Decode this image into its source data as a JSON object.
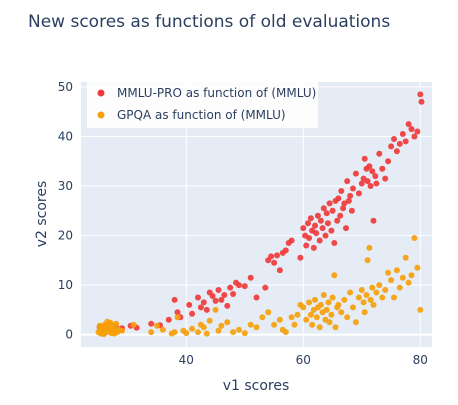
{
  "chart_data": {
    "type": "scatter",
    "title": "New scores as functions of old evaluations",
    "xlabel": "v1 scores",
    "ylabel": "v2 scores",
    "xlim": [
      22,
      82
    ],
    "ylim": [
      -2.5,
      51
    ],
    "x_ticks": [
      40,
      60,
      80
    ],
    "y_ticks": [
      0,
      10,
      20,
      30,
      40,
      50
    ],
    "grid": true,
    "legend_position": "top-left",
    "series": [
      {
        "name": "MMLU-PRO as function of (MMLU)",
        "color": "#ef3a3a",
        "points": [
          [
            25.2,
            1.5
          ],
          [
            25.8,
            1.0
          ],
          [
            26.3,
            1.8
          ],
          [
            26.8,
            2.2
          ],
          [
            27.5,
            1.2
          ],
          [
            28.0,
            1.6
          ],
          [
            29.0,
            1.3
          ],
          [
            30.5,
            1.8
          ],
          [
            31.5,
            1.4
          ],
          [
            34.0,
            2.2
          ],
          [
            35.5,
            1.9
          ],
          [
            37.0,
            3.0
          ],
          [
            38.0,
            7.0
          ],
          [
            38.5,
            4.5
          ],
          [
            39.0,
            3.5
          ],
          [
            40.5,
            6.0
          ],
          [
            41.0,
            4.2
          ],
          [
            42.0,
            7.5
          ],
          [
            42.5,
            5.5
          ],
          [
            43.0,
            6.5
          ],
          [
            43.5,
            5.0
          ],
          [
            44.0,
            8.5
          ],
          [
            44.5,
            7.8
          ],
          [
            45.0,
            6.8
          ],
          [
            45.5,
            9.0
          ],
          [
            46.0,
            7.0
          ],
          [
            46.5,
            8.0
          ],
          [
            47.0,
            5.8
          ],
          [
            47.5,
            9.5
          ],
          [
            48.0,
            8.2
          ],
          [
            48.5,
            10.5
          ],
          [
            49.0,
            10.0
          ],
          [
            50.0,
            9.8
          ],
          [
            51.0,
            11.5
          ],
          [
            52.0,
            7.5
          ],
          [
            53.5,
            9.5
          ],
          [
            54.0,
            15.0
          ],
          [
            54.5,
            15.8
          ],
          [
            55.0,
            14.5
          ],
          [
            55.5,
            16.0
          ],
          [
            56.0,
            13.0
          ],
          [
            56.5,
            16.5
          ],
          [
            57.0,
            17.0
          ],
          [
            57.5,
            18.5
          ],
          [
            58.0,
            19.0
          ],
          [
            59.5,
            15.5
          ],
          [
            60.0,
            21.5
          ],
          [
            60.3,
            20.0
          ],
          [
            60.5,
            18.0
          ],
          [
            60.8,
            22.5
          ],
          [
            61.0,
            19.5
          ],
          [
            61.3,
            23.5
          ],
          [
            61.5,
            21.0
          ],
          [
            61.8,
            17.5
          ],
          [
            62.0,
            22.0
          ],
          [
            62.2,
            20.5
          ],
          [
            62.5,
            24.0
          ],
          [
            62.8,
            19.0
          ],
          [
            63.0,
            23.0
          ],
          [
            63.3,
            21.5
          ],
          [
            63.5,
            25.5
          ],
          [
            63.8,
            20.0
          ],
          [
            64.0,
            24.5
          ],
          [
            64.2,
            22.5
          ],
          [
            64.5,
            26.5
          ],
          [
            64.8,
            21.0
          ],
          [
            65.0,
            25.0
          ],
          [
            65.3,
            18.5
          ],
          [
            65.5,
            27.0
          ],
          [
            65.8,
            23.0
          ],
          [
            66.0,
            27.5
          ],
          [
            66.3,
            24.0
          ],
          [
            66.5,
            29.0
          ],
          [
            66.8,
            25.5
          ],
          [
            67.0,
            26.5
          ],
          [
            67.3,
            21.5
          ],
          [
            67.5,
            31.0
          ],
          [
            67.8,
            27.0
          ],
          [
            68.0,
            28.0
          ],
          [
            68.3,
            25.0
          ],
          [
            68.5,
            29.5
          ],
          [
            69.0,
            32.5
          ],
          [
            69.5,
            28.5
          ],
          [
            70.0,
            30.5
          ],
          [
            70.3,
            31.5
          ],
          [
            70.5,
            35.5
          ],
          [
            70.8,
            33.5
          ],
          [
            71.0,
            31.0
          ],
          [
            71.3,
            34.0
          ],
          [
            71.5,
            30.0
          ],
          [
            71.8,
            33.0
          ],
          [
            72.0,
            23.0
          ],
          [
            72.3,
            32.0
          ],
          [
            72.5,
            30.5
          ],
          [
            73.0,
            36.5
          ],
          [
            73.5,
            33.5
          ],
          [
            74.0,
            31.5
          ],
          [
            74.5,
            35.0
          ],
          [
            75.0,
            38.0
          ],
          [
            75.5,
            39.5
          ],
          [
            76.0,
            37.0
          ],
          [
            76.5,
            38.5
          ],
          [
            77.0,
            40.5
          ],
          [
            77.5,
            39.0
          ],
          [
            78.0,
            42.5
          ],
          [
            78.5,
            41.5
          ],
          [
            79.0,
            40.0
          ],
          [
            79.5,
            41.0
          ],
          [
            80.0,
            48.5
          ],
          [
            80.2,
            47.0
          ]
        ]
      },
      {
        "name": "GPQA as function of (MMLU)",
        "color": "#f59f0a",
        "points": [
          [
            25.0,
            0.5
          ],
          [
            25.2,
            1.8
          ],
          [
            25.4,
            0.2
          ],
          [
            25.6,
            1.2
          ],
          [
            25.8,
            0.8
          ],
          [
            26.0,
            2.0
          ],
          [
            26.2,
            0.4
          ],
          [
            26.4,
            1.5
          ],
          [
            26.6,
            1.0
          ],
          [
            26.8,
            0.6
          ],
          [
            27.0,
            2.4
          ],
          [
            27.2,
            0.3
          ],
          [
            27.4,
            1.8
          ],
          [
            27.6,
            0.9
          ],
          [
            27.8,
            1.4
          ],
          [
            28.0,
            2.2
          ],
          [
            28.2,
            0.5
          ],
          [
            25.3,
            1.0
          ],
          [
            25.9,
            0.1
          ],
          [
            26.5,
            2.6
          ],
          [
            27.1,
            1.1
          ],
          [
            27.7,
            0.2
          ],
          [
            26.1,
            0.7
          ],
          [
            26.9,
            1.6
          ],
          [
            28.5,
            1.0
          ],
          [
            29.0,
            0.8
          ],
          [
            31.0,
            2.0
          ],
          [
            34.0,
            0.5
          ],
          [
            35.0,
            1.8
          ],
          [
            36.0,
            1.0
          ],
          [
            37.5,
            0.2
          ],
          [
            38.0,
            0.5
          ],
          [
            38.5,
            3.5
          ],
          [
            39.5,
            0.8
          ],
          [
            40.0,
            0.3
          ],
          [
            41.0,
            1.2
          ],
          [
            42.0,
            0.5
          ],
          [
            42.5,
            2.0
          ],
          [
            43.0,
            1.5
          ],
          [
            43.5,
            0.2
          ],
          [
            44.0,
            2.8
          ],
          [
            45.0,
            5.0
          ],
          [
            45.5,
            0.8
          ],
          [
            46.0,
            1.8
          ],
          [
            47.0,
            2.5
          ],
          [
            48.0,
            0.5
          ],
          [
            49.0,
            1.0
          ],
          [
            50.0,
            0.3
          ],
          [
            51.0,
            2.0
          ],
          [
            52.0,
            1.5
          ],
          [
            53.0,
            3.5
          ],
          [
            54.0,
            4.5
          ],
          [
            55.0,
            2.0
          ],
          [
            56.0,
            3.0
          ],
          [
            56.5,
            1.0
          ],
          [
            57.0,
            0.5
          ],
          [
            58.0,
            3.5
          ],
          [
            58.5,
            2.0
          ],
          [
            59.0,
            4.0
          ],
          [
            59.5,
            6.0
          ],
          [
            60.0,
            5.5
          ],
          [
            60.5,
            3.0
          ],
          [
            61.0,
            6.5
          ],
          [
            61.3,
            4.0
          ],
          [
            61.5,
            2.0
          ],
          [
            61.8,
            5.0
          ],
          [
            62.0,
            7.0
          ],
          [
            62.3,
            3.5
          ],
          [
            62.5,
            5.5
          ],
          [
            62.8,
            1.5
          ],
          [
            63.0,
            6.0
          ],
          [
            63.3,
            4.5
          ],
          [
            63.5,
            8.0
          ],
          [
            63.8,
            3.0
          ],
          [
            64.0,
            5.0
          ],
          [
            64.3,
            6.5
          ],
          [
            64.5,
            2.5
          ],
          [
            64.8,
            4.0
          ],
          [
            65.0,
            7.5
          ],
          [
            65.3,
            12.0
          ],
          [
            65.5,
            1.5
          ],
          [
            65.8,
            5.5
          ],
          [
            66.0,
            6.0
          ],
          [
            66.5,
            4.5
          ],
          [
            67.0,
            7.0
          ],
          [
            67.5,
            3.5
          ],
          [
            68.0,
            8.5
          ],
          [
            68.5,
            5.5
          ],
          [
            69.0,
            2.5
          ],
          [
            69.5,
            7.5
          ],
          [
            70.0,
            9.0
          ],
          [
            70.3,
            6.5
          ],
          [
            70.5,
            4.5
          ],
          [
            70.8,
            8.0
          ],
          [
            71.0,
            15.0
          ],
          [
            71.3,
            17.5
          ],
          [
            71.5,
            7.0
          ],
          [
            71.8,
            9.5
          ],
          [
            72.0,
            6.0
          ],
          [
            72.5,
            8.5
          ],
          [
            73.0,
            10.0
          ],
          [
            73.5,
            7.5
          ],
          [
            74.0,
            9.0
          ],
          [
            74.5,
            12.5
          ],
          [
            75.0,
            11.0
          ],
          [
            75.5,
            7.5
          ],
          [
            76.0,
            13.0
          ],
          [
            76.5,
            9.5
          ],
          [
            77.0,
            11.5
          ],
          [
            77.5,
            15.5
          ],
          [
            78.0,
            10.5
          ],
          [
            78.5,
            12.0
          ],
          [
            79.0,
            19.5
          ],
          [
            79.5,
            13.5
          ],
          [
            80.0,
            5.0
          ]
        ]
      }
    ]
  }
}
